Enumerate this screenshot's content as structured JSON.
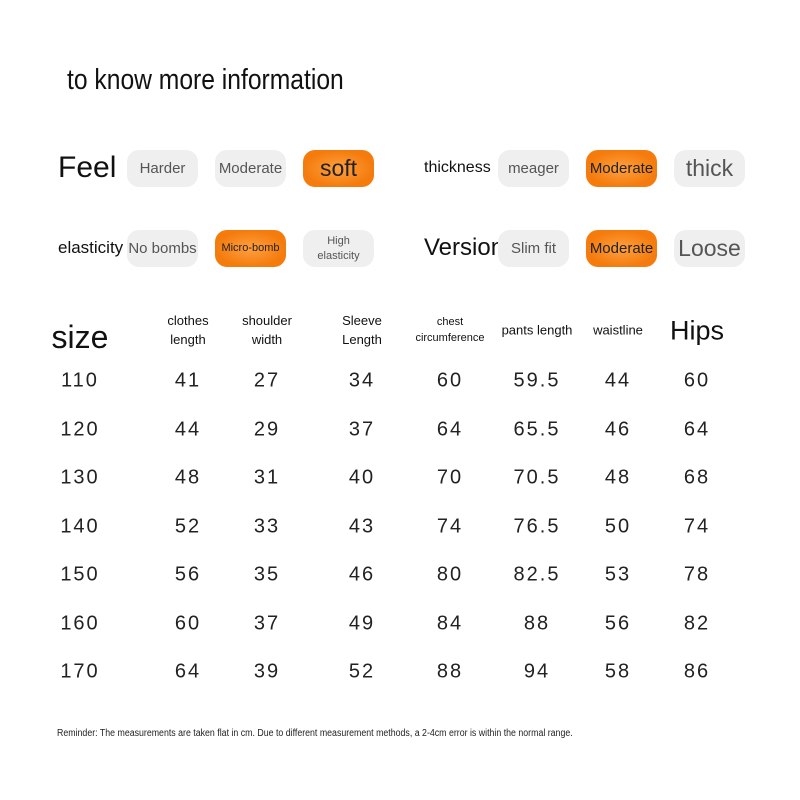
{
  "header": {
    "title": "to know more information"
  },
  "attributes": [
    {
      "label": "Feel",
      "options": [
        "Harder",
        "Moderate",
        "soft"
      ],
      "selected": 2
    },
    {
      "label": "thickness",
      "options": [
        "meager",
        "Moderate",
        "thick"
      ],
      "selected": 1
    },
    {
      "label": "elasticity",
      "options": [
        "No bombs",
        "Micro-bomb",
        "High\nelasticity"
      ],
      "selected": 1
    },
    {
      "label": "Version",
      "options": [
        "Slim fit",
        "Moderate",
        "Loose"
      ],
      "selected": 1
    }
  ],
  "table": {
    "columns": [
      "size",
      "clothes\nlength",
      "shoulder\nwidth",
      "Sleeve\nLength",
      "chest\ncircumference",
      "pants length",
      "waistline",
      "Hips"
    ],
    "rows": [
      [
        110,
        41,
        27,
        34,
        60,
        59.5,
        44,
        60
      ],
      [
        120,
        44,
        29,
        37,
        64,
        65.5,
        46,
        64
      ],
      [
        130,
        48,
        31,
        40,
        70,
        70.5,
        48,
        68
      ],
      [
        140,
        52,
        33,
        43,
        74,
        76.5,
        50,
        74
      ],
      [
        150,
        56,
        35,
        46,
        80,
        82.5,
        53,
        78
      ],
      [
        160,
        60,
        37,
        49,
        84,
        88,
        56,
        82
      ],
      [
        170,
        64,
        39,
        52,
        88,
        94,
        58,
        86
      ]
    ]
  },
  "reminder": "Reminder: The measurements are taken flat in cm. Due to different measurement methods, a 2-4cm error is within the normal range."
}
